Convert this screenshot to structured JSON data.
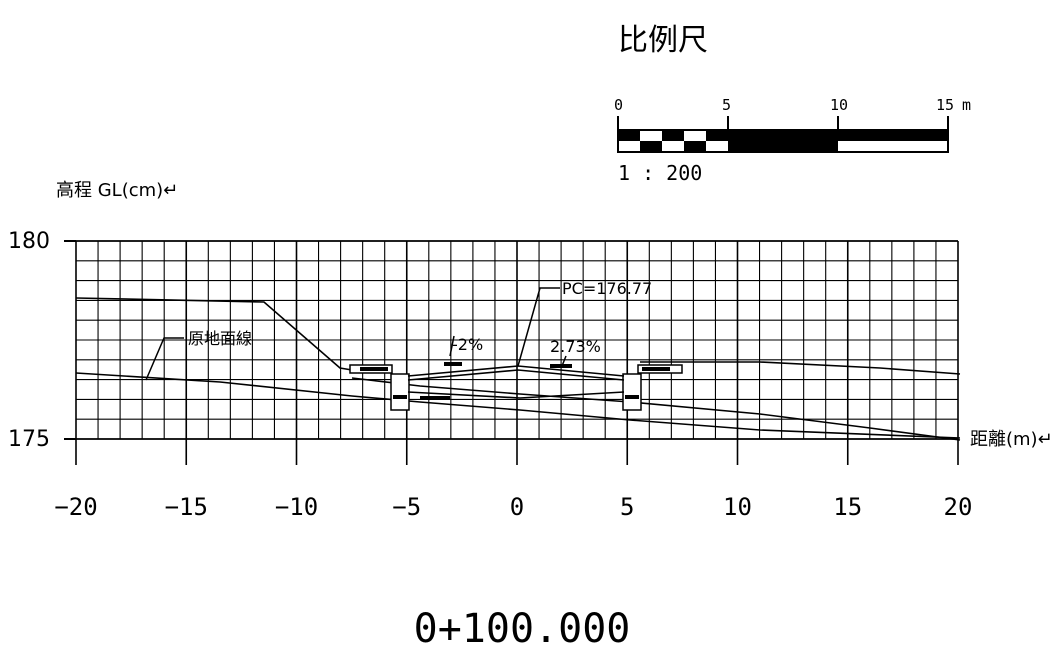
{
  "scale_bar": {
    "title": "比例尺",
    "ticks": [
      "0",
      "5",
      "10",
      "15"
    ],
    "unit": "m",
    "ratio": "1 : 200"
  },
  "axes": {
    "ylabel": "高程 GL(cm)↵",
    "xlabel": "距離(m)↵",
    "yticks": [
      "180",
      "175"
    ],
    "xticks": [
      "−20",
      "−15",
      "−10",
      "−5",
      "0",
      "5",
      "10",
      "15",
      "20"
    ]
  },
  "annotations": {
    "ground_line": "原地面線",
    "pc": "PC=176.77",
    "slope_left": "-2%",
    "slope_right": "2.73%"
  },
  "station": "0+100.000",
  "colors": {
    "ink": "#000000",
    "paper": "#ffffff"
  }
}
